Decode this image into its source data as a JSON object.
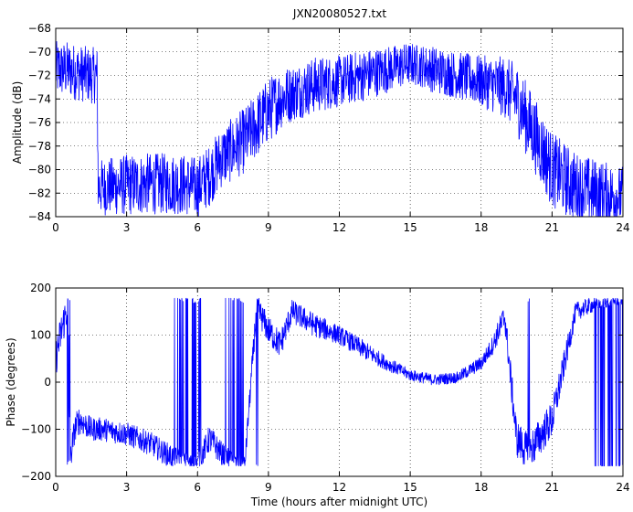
{
  "colors": {
    "series": "#0000ff",
    "axes": "#000000",
    "grid": "#000000",
    "background": "#ffffff"
  },
  "chart_data": [
    {
      "type": "line",
      "title": "JXN20080527.txt",
      "xlabel": "",
      "ylabel": "Amplitude (dB)",
      "xlim": [
        0,
        24
      ],
      "ylim": [
        -84,
        -68
      ],
      "xticks": [
        "0",
        "3",
        "6",
        "9",
        "12",
        "15",
        "18",
        "21",
        "24"
      ],
      "yticks": [
        "-68",
        "-70",
        "-72",
        "-74",
        "-76",
        "-78",
        "-80",
        "-82",
        "-84"
      ],
      "grid": true,
      "series": [
        {
          "color": "#0000ff",
          "x": [
            0,
            0.5,
            1.0,
            1.5,
            1.75,
            1.8,
            2.0,
            3,
            4,
            5,
            5.5,
            6,
            6.5,
            7,
            8,
            9,
            9.5,
            10,
            11,
            12,
            13,
            14,
            15,
            15.5,
            16,
            17,
            18,
            19,
            19.5,
            20,
            20.5,
            21,
            22,
            23,
            24
          ],
          "y": [
            -71.5,
            -71.5,
            -71.8,
            -72,
            -72,
            -81.5,
            -81.5,
            -81.3,
            -81.2,
            -81.2,
            -81.3,
            -81.5,
            -80.5,
            -79,
            -77.5,
            -75,
            -74,
            -73.5,
            -72.8,
            -72.5,
            -72,
            -71.5,
            -71,
            -71.2,
            -71.5,
            -72,
            -72.5,
            -73,
            -74,
            -76,
            -78,
            -80,
            -81.5,
            -82,
            -82.3
          ],
          "noise": [
            2.4,
            2.4,
            2.4,
            2.4,
            2.4,
            2.4,
            2.4,
            2.6,
            2.6,
            2.6,
            2.6,
            2.6,
            2.6,
            2.6,
            2.8,
            2.8,
            2.6,
            2.4,
            2.4,
            2.2,
            2.2,
            2.0,
            1.8,
            1.8,
            2.0,
            2.0,
            2.2,
            2.6,
            3.0,
            3.2,
            3.2,
            3.2,
            3.0,
            2.8,
            2.6
          ]
        }
      ]
    },
    {
      "type": "line",
      "title": "",
      "xlabel": "Time (hours after midnight UTC)",
      "ylabel": "Phase (degrees)",
      "xlim": [
        0,
        24
      ],
      "ylim": [
        -200,
        200
      ],
      "xticks": [
        "0",
        "3",
        "6",
        "9",
        "12",
        "15",
        "18",
        "21",
        "24"
      ],
      "yticks": [
        "200",
        "100",
        "0",
        "-100",
        "-200"
      ],
      "grid": true,
      "series": [
        {
          "color": "#0000ff",
          "x": [
            0,
            0.2,
            0.4,
            0.55,
            0.6,
            0.8,
            1.0,
            1.5,
            2,
            3,
            4,
            4.6,
            5,
            5.5,
            6,
            6.5,
            7,
            7.5,
            8,
            8.5,
            9,
            9.5,
            10,
            11,
            12,
            13,
            14,
            15,
            16,
            17,
            18,
            18.5,
            19,
            19.5,
            20,
            21,
            22,
            23,
            24
          ],
          "y": [
            50,
            100,
            140,
            170,
            -170,
            -100,
            -80,
            -100,
            -100,
            -110,
            -130,
            -150,
            -160,
            -170,
            -175,
            -120,
            -150,
            -170,
            -175,
            160,
            110,
            80,
            150,
            120,
            100,
            70,
            40,
            15,
            5,
            10,
            40,
            80,
            140,
            -120,
            -150,
            -80,
            150,
            170,
            175
          ],
          "noise": [
            40,
            40,
            40,
            40,
            30,
            30,
            30,
            25,
            25,
            25,
            25,
            25,
            25,
            20,
            20,
            30,
            25,
            20,
            20,
            30,
            30,
            30,
            25,
            25,
            20,
            20,
            15,
            12,
            12,
            12,
            15,
            20,
            30,
            40,
            40,
            40,
            20,
            15,
            10
          ]
        }
      ],
      "wrap_range": [
        -180,
        180
      ]
    }
  ]
}
